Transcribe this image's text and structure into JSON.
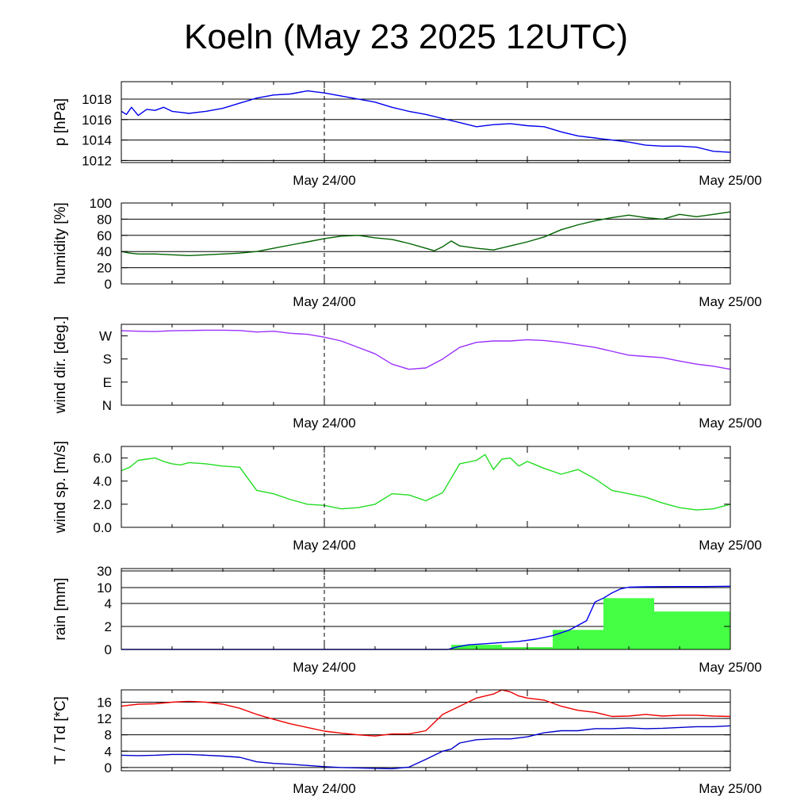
{
  "title": "Koeln (May 23 2025 12UTC)",
  "x_labels": [
    "May 24/00",
    "May 25/00"
  ],
  "chart_data": [
    {
      "type": "line",
      "ylabel": "p [hPa]",
      "ylim": [
        1011.8,
        1019.7
      ],
      "yticks": [
        1012,
        1014,
        1016,
        1018
      ],
      "ytick_labels": [
        "1012",
        "1014",
        "1016",
        "1018"
      ],
      "grid": true,
      "x_hours_range": [
        0,
        36
      ],
      "series": [
        {
          "color": "#0000ee",
          "x": [
            0,
            0.3,
            0.6,
            1,
            1.5,
            2,
            2.5,
            3,
            3.5,
            4,
            5,
            6,
            7,
            8,
            9,
            10,
            11,
            12,
            13,
            14,
            15,
            16,
            17,
            18,
            19,
            20,
            21,
            22,
            23,
            24,
            25,
            26,
            27,
            28,
            29,
            30,
            31,
            32,
            33,
            34,
            35,
            36
          ],
          "y": [
            1016.8,
            1016.5,
            1017.2,
            1016.4,
            1017.0,
            1016.9,
            1017.2,
            1016.8,
            1016.7,
            1016.6,
            1016.8,
            1017.1,
            1017.6,
            1018.1,
            1018.4,
            1018.5,
            1018.8,
            1018.6,
            1018.3,
            1018.0,
            1017.7,
            1017.2,
            1016.8,
            1016.5,
            1016.1,
            1015.7,
            1015.3,
            1015.5,
            1015.6,
            1015.4,
            1015.3,
            1014.8,
            1014.4,
            1014.2,
            1014.0,
            1013.8,
            1013.5,
            1013.4,
            1013.4,
            1013.3,
            1012.9,
            1012.8
          ]
        }
      ]
    },
    {
      "type": "line",
      "ylabel": "humidity [%]",
      "ylim": [
        0,
        100
      ],
      "yticks": [
        0,
        20,
        40,
        60,
        80,
        100
      ],
      "ytick_labels": [
        "0",
        "20",
        "40",
        "60",
        "80",
        "100"
      ],
      "grid": true,
      "x_hours_range": [
        0,
        36
      ],
      "series": [
        {
          "color": "#006400",
          "x": [
            0,
            0.5,
            1,
            2,
            3,
            4,
            5,
            6,
            7,
            8,
            9,
            10,
            11,
            12,
            13,
            14,
            15,
            16,
            17,
            18,
            18.5,
            19,
            19.5,
            20,
            21,
            22,
            23,
            24,
            25,
            26,
            27,
            28,
            29,
            30,
            31,
            32,
            33,
            34,
            35,
            36
          ],
          "y": [
            40,
            38,
            37,
            37,
            36,
            35,
            36,
            37,
            38,
            40,
            44,
            48,
            52,
            56,
            59,
            60,
            57,
            55,
            50,
            44,
            41,
            46,
            53,
            47,
            44,
            42,
            47,
            52,
            58,
            67,
            73,
            78,
            82,
            85,
            82,
            80,
            86,
            83,
            86,
            89
          ]
        }
      ]
    },
    {
      "type": "line",
      "ylabel": "wind dir. [deg.]",
      "ylim": [
        0,
        315
      ],
      "yticks": [
        0,
        90,
        180,
        270
      ],
      "ytick_labels": [
        "N",
        "E",
        "S",
        "W"
      ],
      "grid": false,
      "x_hours_range": [
        0,
        36
      ],
      "series": [
        {
          "color": "#9b30ff",
          "x": [
            0,
            1,
            2,
            3,
            4,
            5,
            6,
            7,
            8,
            9,
            10,
            11,
            12,
            13,
            14,
            15,
            16,
            17,
            18,
            19,
            20,
            21,
            22,
            23,
            24,
            25,
            26,
            27,
            28,
            29,
            30,
            31,
            32,
            33,
            34,
            35,
            36
          ],
          "y": [
            290,
            288,
            287,
            290,
            291,
            292,
            292,
            291,
            285,
            288,
            280,
            276,
            265,
            250,
            225,
            200,
            160,
            140,
            145,
            180,
            225,
            245,
            250,
            250,
            255,
            252,
            245,
            235,
            225,
            210,
            195,
            190,
            185,
            172,
            160,
            152,
            140
          ]
        }
      ]
    },
    {
      "type": "line",
      "ylabel": "wind sp. [m/s]",
      "ylim": [
        0,
        7
      ],
      "yticks": [
        0,
        2,
        4,
        6
      ],
      "ytick_labels": [
        "0.0",
        "2.0",
        "4.0",
        "6.0"
      ],
      "grid": false,
      "x_hours_range": [
        0,
        36
      ],
      "series": [
        {
          "color": "#22dd22",
          "x": [
            0,
            0.5,
            1,
            1.5,
            2,
            2.5,
            3,
            3.5,
            4,
            5,
            6,
            7,
            8,
            9,
            10,
            11,
            12,
            13,
            14,
            15,
            16,
            17,
            18,
            19,
            20,
            21,
            21.5,
            22,
            22.5,
            23,
            23.5,
            24,
            24.5,
            25,
            26,
            27,
            28,
            29,
            30,
            31,
            32,
            33,
            34,
            35,
            36
          ],
          "y": [
            4.9,
            5.2,
            5.8,
            5.9,
            6.0,
            5.7,
            5.5,
            5.4,
            5.6,
            5.5,
            5.3,
            5.2,
            3.2,
            2.9,
            2.4,
            2.0,
            1.9,
            1.6,
            1.7,
            2.0,
            2.9,
            2.8,
            2.3,
            3.0,
            5.5,
            5.8,
            6.3,
            5.0,
            5.9,
            6.0,
            5.3,
            5.7,
            5.4,
            5.1,
            4.6,
            5.0,
            4.2,
            3.2,
            2.9,
            2.6,
            2.1,
            1.7,
            1.5,
            1.6,
            2.0
          ]
        }
      ]
    },
    {
      "type": "bar+line",
      "ylabel": "rain [mm]",
      "yticks": [
        0,
        2,
        4,
        10,
        30
      ],
      "ytick_labels": [
        "0",
        "2",
        "4",
        "10",
        "30"
      ],
      "grid": true,
      "x_hours_range": [
        0,
        36
      ],
      "bars": {
        "color": "#44ff44",
        "x0": [
          19.5,
          22.5,
          25.5,
          28.5,
          31.5
        ],
        "x1": [
          22.5,
          25.5,
          28.5,
          31.5,
          36
        ],
        "values": [
          0.4,
          0.2,
          1.7,
          6.0,
          3.3
        ]
      },
      "series": [
        {
          "color": "#0000ee",
          "x": [
            0,
            19.3,
            19.8,
            20.5,
            21.5,
            22.5,
            23.5,
            24.5,
            25.5,
            26.5,
            27.5,
            28.0,
            28.5,
            29,
            29.5,
            30,
            31,
            32,
            33,
            34,
            35,
            36
          ],
          "y": [
            0,
            0,
            0.2,
            0.4,
            0.5,
            0.6,
            0.7,
            0.9,
            1.2,
            1.7,
            2.5,
            4.5,
            6.0,
            8.0,
            9.5,
            10.5,
            11.0,
            11.1,
            11.2,
            11.2,
            11.3,
            11.6
          ]
        }
      ]
    },
    {
      "type": "line",
      "ylabel": "T / Td [*C]",
      "ylim": [
        -0.8,
        19
      ],
      "yticks": [
        0,
        4,
        8,
        12,
        16
      ],
      "ytick_labels": [
        "0",
        "4",
        "8",
        "12",
        "16"
      ],
      "grid": true,
      "x_hours_range": [
        0,
        36
      ],
      "series": [
        {
          "name": "T",
          "color": "#ee0000",
          "x": [
            0,
            1,
            2,
            3,
            4,
            5,
            6,
            7,
            8,
            9,
            10,
            11,
            12,
            13,
            14,
            15,
            16,
            17,
            18,
            19,
            20,
            21,
            22,
            22.5,
            23,
            23.5,
            24,
            25,
            26,
            27,
            28,
            29,
            30,
            31,
            32,
            33,
            34,
            35,
            36
          ],
          "y": [
            15.0,
            15.5,
            15.6,
            16.0,
            16.2,
            16.0,
            15.5,
            14.5,
            13.0,
            11.8,
            10.7,
            9.8,
            8.9,
            8.4,
            8.0,
            7.7,
            8.2,
            8.2,
            9.0,
            13.0,
            15.0,
            17.0,
            18.0,
            19.0,
            18.5,
            17.5,
            17.0,
            16.5,
            15.0,
            14.0,
            13.5,
            12.5,
            12.6,
            13.0,
            12.6,
            12.8,
            12.8,
            12.6,
            12.5
          ]
        },
        {
          "name": "Td",
          "color": "#0000cc",
          "x": [
            0,
            1,
            2,
            3,
            4,
            5,
            6,
            7,
            8,
            9,
            10,
            11,
            12,
            13,
            14,
            15,
            16,
            17,
            18,
            19,
            19.5,
            20,
            21,
            22,
            23,
            24,
            25,
            26,
            27,
            28,
            29,
            30,
            31,
            32,
            33,
            34,
            35,
            36
          ],
          "y": [
            3.0,
            2.9,
            3.0,
            3.2,
            3.2,
            3.0,
            2.8,
            2.5,
            1.4,
            1.0,
            0.8,
            0.5,
            0.2,
            0.0,
            -0.1,
            -0.2,
            -0.3,
            0.1,
            2.0,
            4.0,
            4.5,
            6.0,
            6.8,
            7.0,
            7.0,
            7.5,
            8.5,
            9.0,
            9.0,
            9.5,
            9.5,
            9.7,
            9.5,
            9.6,
            9.8,
            10.0,
            10.0,
            10.2
          ]
        }
      ]
    }
  ]
}
